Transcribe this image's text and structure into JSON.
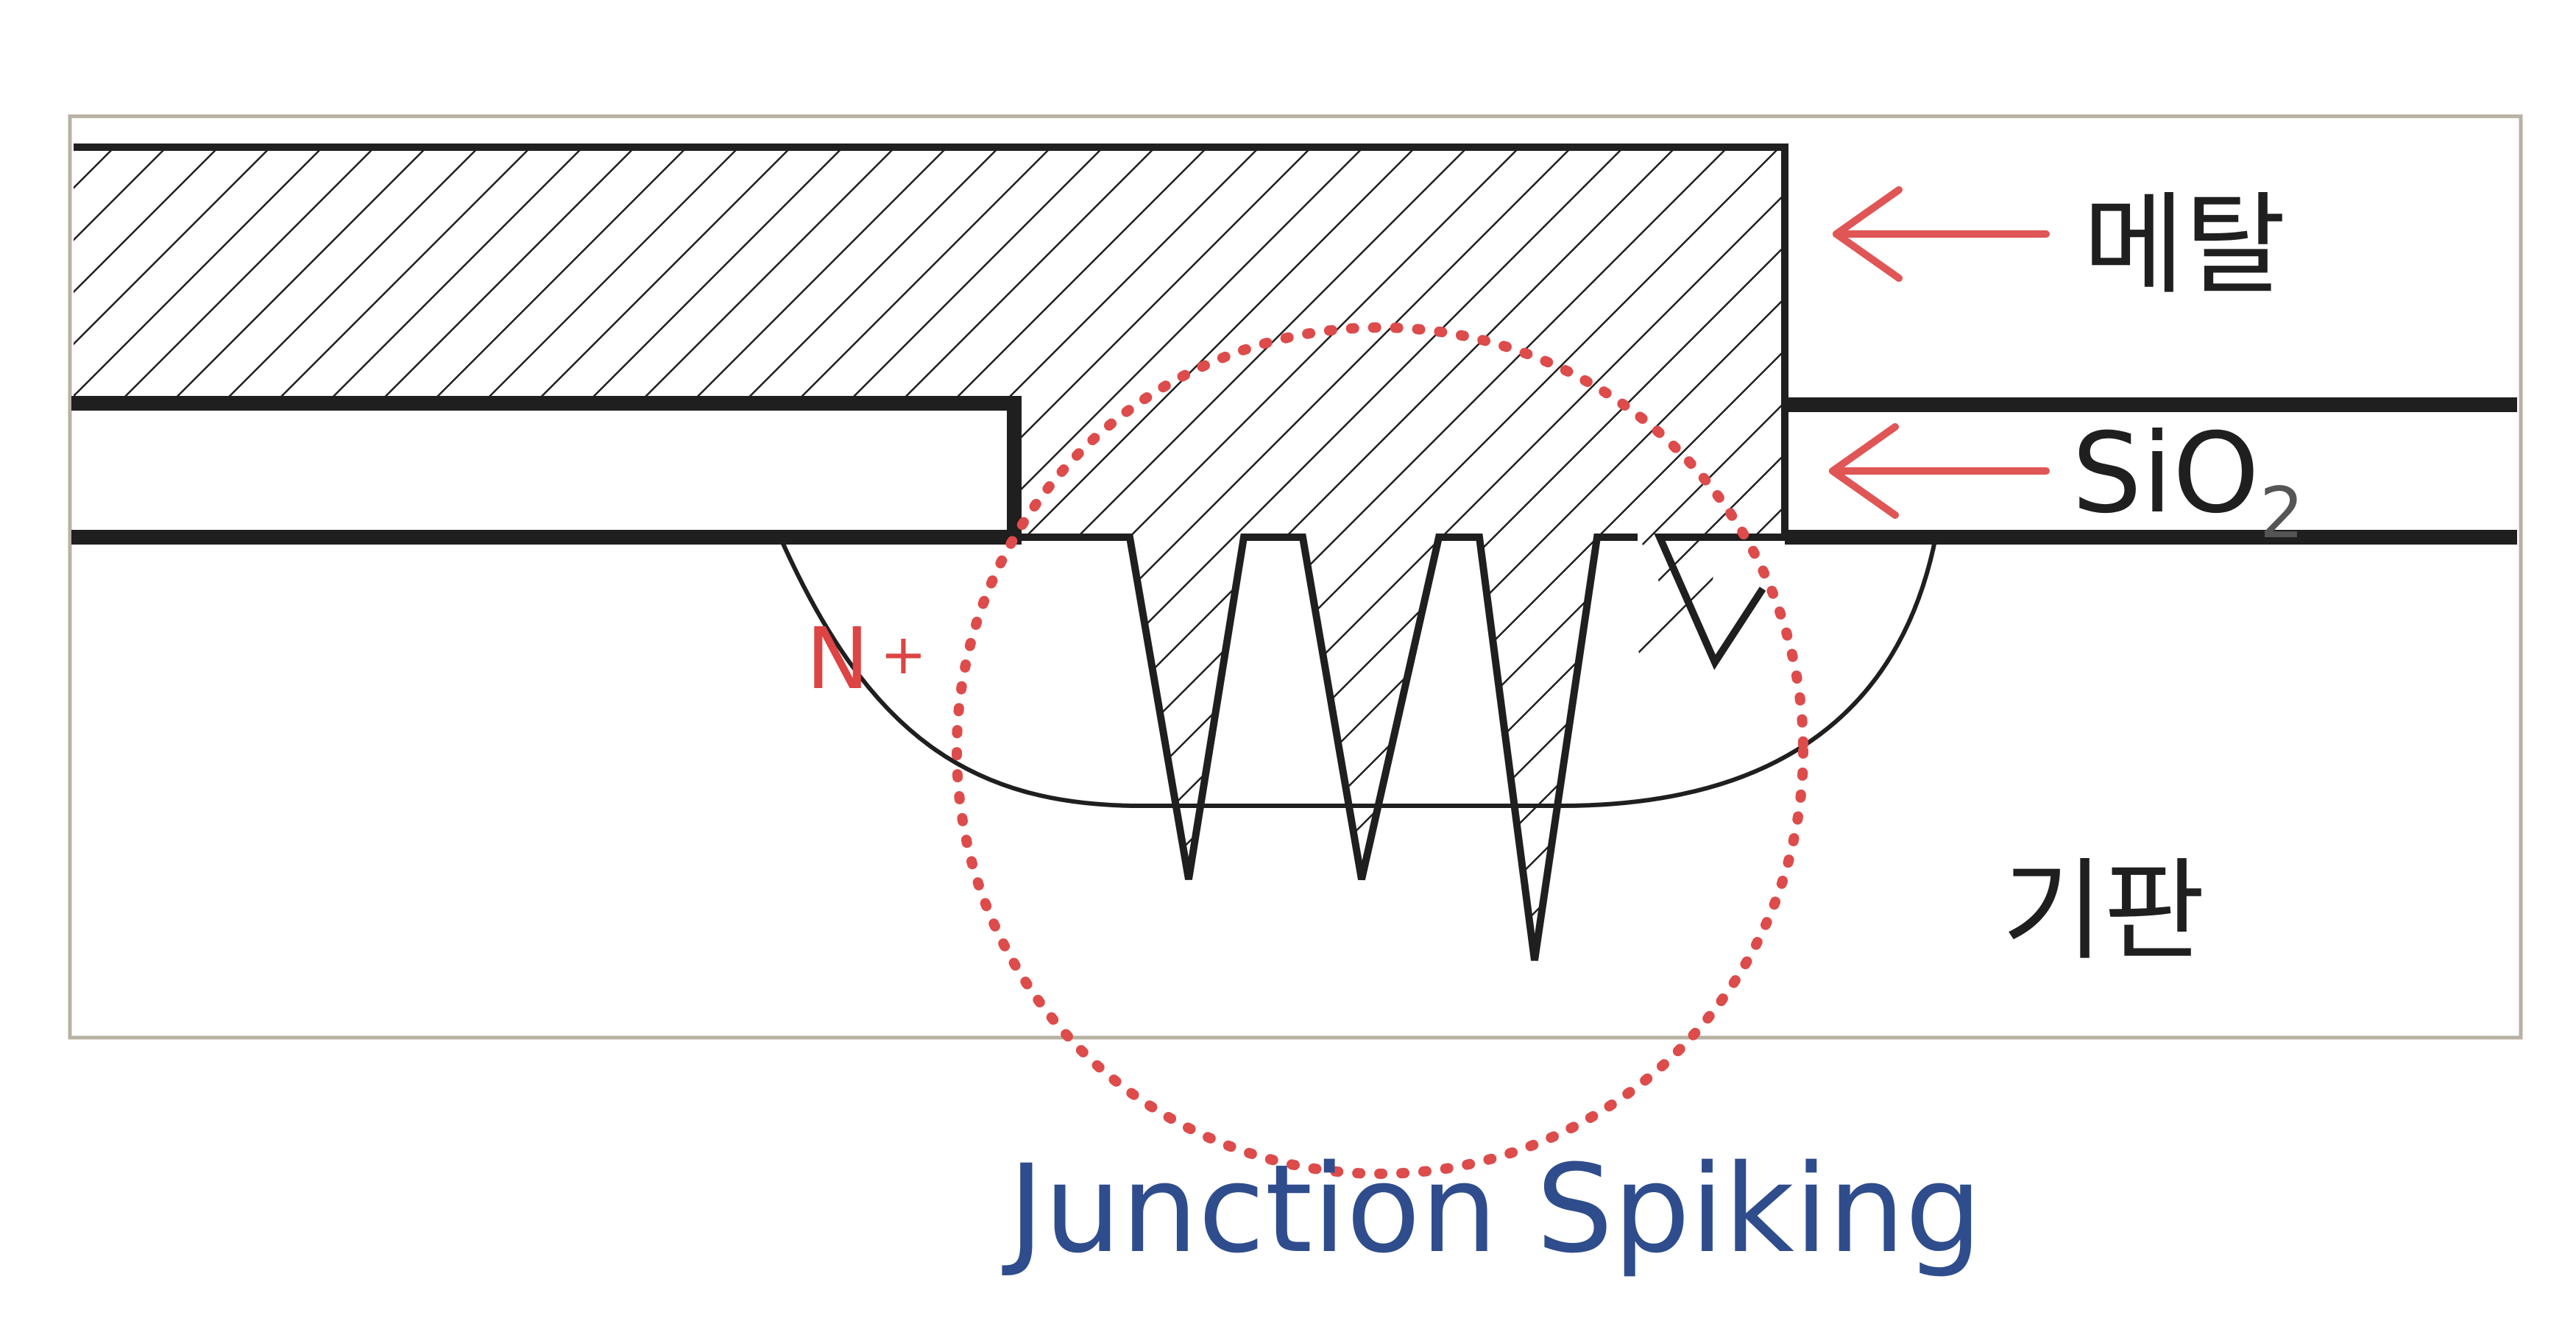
{
  "labels": {
    "metal": "메탈",
    "oxide_main": "SiO",
    "oxide_sub": "2",
    "substrate": "기판",
    "n_main": "N",
    "n_sup": "+",
    "caption": "Junction Spiking"
  },
  "colors": {
    "line": "#1f1f1f",
    "arrow": "#e05555",
    "circle": "#dd4b4b",
    "n_label": "#dd4444",
    "caption": "#2f4d8c",
    "frame": "#b8b2a4",
    "background": "#ffffff"
  }
}
